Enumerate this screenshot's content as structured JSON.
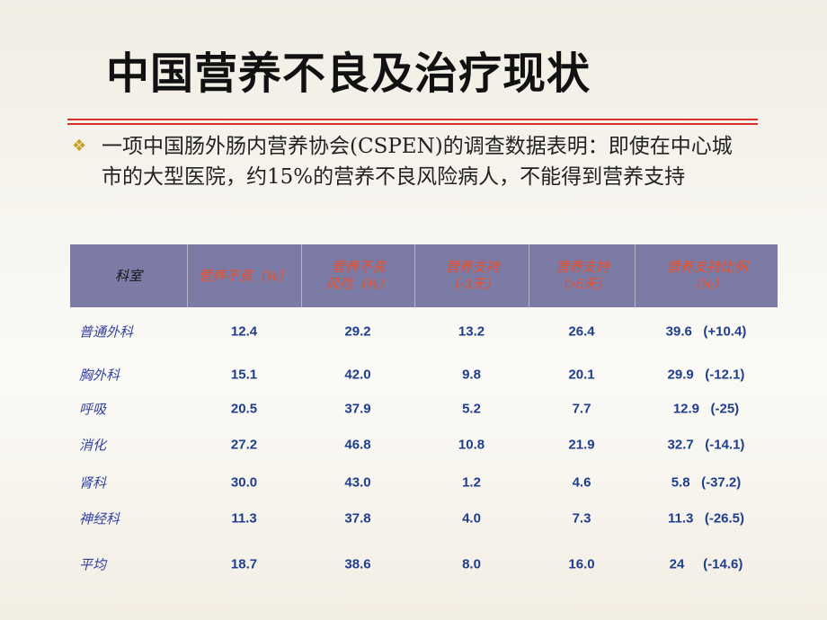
{
  "title": "中国营养不良及治疗现状",
  "bullet": "一项中国肠外肠内营养协会(CSPEN)的调查数据表明：即使在中心城市的大型医院，约15%的营养不良风险病人，不能得到营养支持",
  "table": {
    "header": [
      [
        "科室"
      ],
      [
        "营养不良（%）"
      ],
      [
        "营养不良",
        "风险（%）"
      ],
      [
        "营养支持",
        "（-3天）"
      ],
      [
        "营养支持",
        "（>5天）"
      ],
      [
        "营养支持比例",
        "（%）"
      ]
    ],
    "rows": [
      [
        "普通外科",
        "12.4",
        "29.2",
        "13.2",
        "26.4",
        "39.6   (+10.4)"
      ],
      [
        "胸外科",
        "15.1",
        "42.0",
        "9.8",
        "20.1",
        "29.9   (-12.1)"
      ],
      [
        "呼吸",
        "20.5",
        "37.9",
        "5.2",
        "7.7",
        "12.9   (-25)"
      ],
      [
        "消化",
        "27.2",
        "46.8",
        "10.8",
        "21.9",
        "32.7   (-14.1)"
      ],
      [
        "肾科",
        "30.0",
        "43.0",
        "1.2",
        "4.6",
        "5.8   (-37.2)"
      ],
      [
        "神经科",
        "11.3",
        "37.8",
        "4.0",
        "7.3",
        "11.3   (-26.5)"
      ],
      [
        "平均",
        "18.7",
        "38.6",
        "8.0",
        "16.0",
        "24     (-14.6)"
      ]
    ]
  }
}
